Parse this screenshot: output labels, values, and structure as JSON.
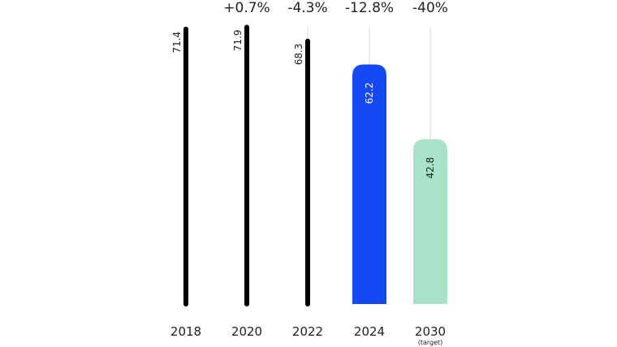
{
  "chart_data": {
    "type": "bar",
    "categories": [
      "2018",
      "2020",
      "2022",
      "2024",
      "2030"
    ],
    "category_notes": [
      "",
      "",
      "",
      "",
      "(target)"
    ],
    "values": [
      71.4,
      71.9,
      68.3,
      62.2,
      42.8
    ],
    "value_labels": [
      "71.4",
      "71.9",
      "68.3",
      "62.2",
      "42.8"
    ],
    "change_labels": [
      "",
      "+0.7%",
      "-4.3%",
      "-12.8%",
      "-40%"
    ],
    "bar_colors": [
      "#000000",
      "#000000",
      "#000000",
      "#1449f5",
      "#a8e2c8"
    ],
    "label_colors": [
      "#222222",
      "#222222",
      "#222222",
      "#ffffff",
      "#222222"
    ],
    "ylim": [
      0,
      71.9
    ],
    "grid": false,
    "title": "",
    "xlabel": "",
    "ylabel": ""
  }
}
